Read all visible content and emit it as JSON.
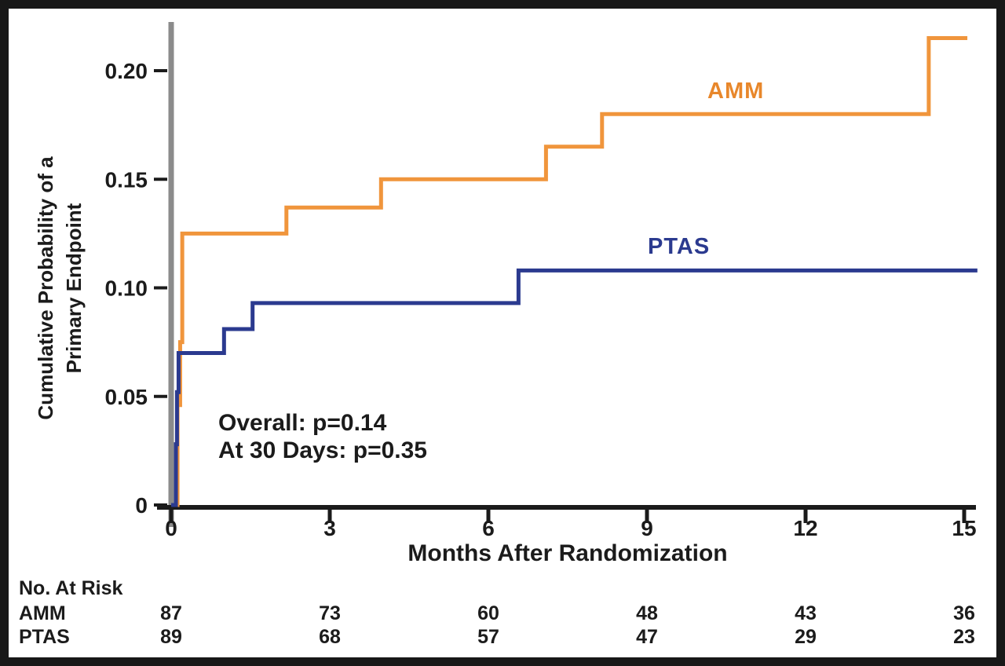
{
  "chart_data": {
    "type": "line",
    "subtype": "kaplan_meier_step",
    "title": "",
    "xlabel": "Months After Randomization",
    "ylabel": "Cumulative Probability of a Primary Endpoint",
    "ylabel_lines": [
      "Cumulative Probability of a",
      "Primary Endpoint"
    ],
    "xlim": [
      0,
      15
    ],
    "ylim": [
      0,
      0.22
    ],
    "grid": false,
    "legend_position": "inline-curve-labels",
    "ink_color": "#1b1b1b",
    "axis_color": "#8b8b8b",
    "x_ticks": [
      {
        "value": 0,
        "label": "0"
      },
      {
        "value": 3,
        "label": "3"
      },
      {
        "value": 6,
        "label": "6"
      },
      {
        "value": 9,
        "label": "9"
      },
      {
        "value": 12,
        "label": "12"
      },
      {
        "value": 15,
        "label": "15"
      }
    ],
    "y_ticks": [
      {
        "value": 0.2,
        "label": "0.20"
      },
      {
        "value": 0.15,
        "label": "0.15"
      },
      {
        "value": 0.1,
        "label": "0.10"
      },
      {
        "value": 0.05,
        "label": "0.05"
      },
      {
        "value": 0,
        "label": "0"
      }
    ],
    "annotations": [
      "Overall: p=0.14",
      "At 30 Days: p=0.35"
    ],
    "series": [
      {
        "name": "AMM",
        "color": "#F0953C",
        "label_color": "#E8872B",
        "points": [
          [
            0,
            0
          ],
          [
            0.12,
            0.046
          ],
          [
            0.17,
            0.075
          ],
          [
            0.21,
            0.125
          ],
          [
            2.18,
            0.137
          ],
          [
            3.97,
            0.15
          ],
          [
            7.09,
            0.165
          ],
          [
            8.15,
            0.18
          ],
          [
            14.33,
            0.215
          ],
          [
            15.06,
            0.215
          ]
        ]
      },
      {
        "name": "PTAS",
        "color": "#2B3A8F",
        "label_color": "#2B3A8F",
        "points": [
          [
            0,
            0
          ],
          [
            0.09,
            0.028
          ],
          [
            0.11,
            0.052
          ],
          [
            0.14,
            0.07
          ],
          [
            1.0,
            0.081
          ],
          [
            1.54,
            0.093
          ],
          [
            6.57,
            0.108
          ],
          [
            15.25,
            0.108
          ]
        ]
      }
    ]
  },
  "risk_table": {
    "title": "No. At Risk",
    "rows": [
      {
        "label": "AMM",
        "values": [
          "87",
          "73",
          "60",
          "48",
          "43",
          "36"
        ]
      },
      {
        "label": "PTAS",
        "values": [
          "89",
          "68",
          "57",
          "47",
          "29",
          "23"
        ]
      }
    ]
  }
}
